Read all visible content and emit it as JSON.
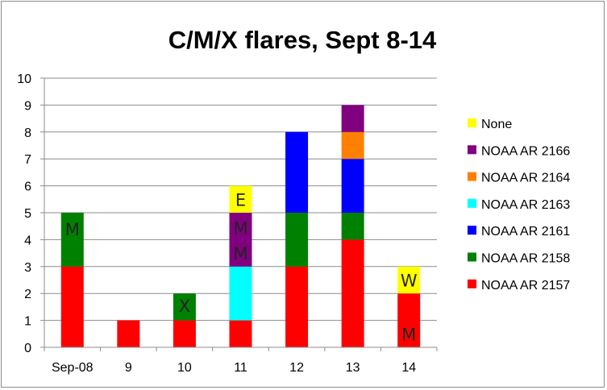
{
  "chart_data": {
    "type": "bar",
    "stacked": true,
    "title": "C/M/X flares, Sept 8-14",
    "xlabel": "",
    "ylabel": "",
    "categories": [
      "Sep-08",
      "9",
      "10",
      "11",
      "12",
      "13",
      "14"
    ],
    "ylim": [
      0,
      10
    ],
    "yticks": [
      "0",
      "1",
      "2",
      "3",
      "4",
      "5",
      "6",
      "7",
      "8",
      "9",
      "10"
    ],
    "grid": true,
    "legend_position": "right",
    "series": [
      {
        "name": "NOAA AR 2157",
        "color": "#ff0000",
        "values": [
          3,
          1,
          1,
          1,
          3,
          4,
          2
        ]
      },
      {
        "name": "NOAA AR 2158",
        "color": "#008000",
        "values": [
          2,
          0,
          1,
          0,
          2,
          1,
          0
        ]
      },
      {
        "name": "NOAA AR 2161",
        "color": "#0000ff",
        "values": [
          0,
          0,
          0,
          0,
          3,
          2,
          0
        ]
      },
      {
        "name": "NOAA AR 2163",
        "color": "#00ffff",
        "values": [
          0,
          0,
          0,
          2,
          0,
          0,
          0
        ]
      },
      {
        "name": "NOAA AR 2164",
        "color": "#ff8000",
        "values": [
          0,
          0,
          0,
          0,
          0,
          1,
          0
        ]
      },
      {
        "name": "NOAA AR 2166",
        "color": "#800080",
        "values": [
          0,
          0,
          0,
          2,
          0,
          1,
          0
        ]
      },
      {
        "name": "None",
        "color": "#ffff00",
        "values": [
          0,
          0,
          0,
          1,
          0,
          0,
          1
        ]
      }
    ],
    "legend_order": [
      "None",
      "NOAA AR 2166",
      "NOAA AR 2164",
      "NOAA AR 2163",
      "NOAA AR 2161",
      "NOAA AR 2158",
      "NOAA AR 2157"
    ],
    "annotations": [
      {
        "text": "M",
        "category": "Sep-08",
        "y": 4.4
      },
      {
        "text": "X",
        "category": "10",
        "y": 1.55
      },
      {
        "text": "M",
        "category": "11",
        "y": 4.45
      },
      {
        "text": "M",
        "category": "11",
        "y": 3.5
      },
      {
        "text": "E",
        "category": "11",
        "y": 5.5
      },
      {
        "text": "W",
        "category": "14",
        "y": 2.5
      },
      {
        "text": "M",
        "category": "14",
        "y": 0.5
      }
    ]
  }
}
